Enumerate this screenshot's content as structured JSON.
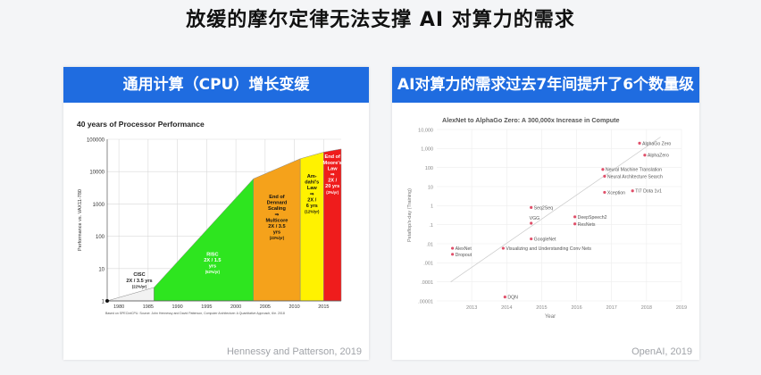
{
  "main_title": "放缓的摩尔定律无法支撑 AI 对算力的需求",
  "left_card": {
    "header": "通用计算（CPU）增长变缓",
    "caption": "Hennessy and Patterson, 2019"
  },
  "right_card": {
    "header": "AI对算力的需求过去7年间提升了6个数量级",
    "caption": "OpenAI, 2019"
  },
  "colors": {
    "header_blue": "#1f6ce0",
    "cisc": "#f2f2f2",
    "risc": "#2ee51f",
    "dennard": "#f5a21b",
    "amdahl": "#fff200",
    "moore": "#ef1c1c",
    "openai_point": "#e0506a"
  },
  "chart_data": [
    {
      "type": "area",
      "title": "40 years of Processor Performance",
      "ylabel": "Performance vs. VAX11-780",
      "xlabel": "",
      "x_ticks": [
        1980,
        1985,
        1990,
        1995,
        2000,
        2005,
        2010,
        2015
      ],
      "y_ticks": [
        1,
        10,
        100,
        1000,
        10000,
        100000
      ],
      "y_scale": "log",
      "ylim": [
        1,
        100000
      ],
      "xlim": [
        1978,
        2018
      ],
      "grid": true,
      "curve": [
        [
          1978,
          1
        ],
        [
          1986,
          2.6
        ],
        [
          2003,
          6000
        ],
        [
          2011,
          25000
        ],
        [
          2015,
          40000
        ],
        [
          2018,
          50000
        ]
      ],
      "regions": [
        {
          "name": "CISC",
          "from": 1978,
          "to": 1986,
          "label": [
            "CISC",
            "2X / 3.5 yrs",
            "(22%/yr)"
          ]
        },
        {
          "name": "RISC",
          "from": 1986,
          "to": 2003,
          "label": [
            "RISC",
            "2X / 1.5",
            "yrs",
            "(52%/yr)"
          ]
        },
        {
          "name": "Dennard",
          "from": 2003,
          "to": 2011,
          "label": [
            "End of",
            "Dennard",
            "Scaling",
            "⇒",
            "Multicore",
            "2X / 3.5",
            "yrs",
            "(23%/yr)"
          ]
        },
        {
          "name": "Amdahl",
          "from": 2011,
          "to": 2015,
          "label": [
            "Am-",
            "dahl's",
            "Law",
            "⇒",
            "2X /",
            "6 yrs",
            "(12%/yr)"
          ]
        },
        {
          "name": "Moore",
          "from": 2015,
          "to": 2018,
          "label": [
            "End of",
            "Moore's",
            "Law",
            "⇒",
            "2X /",
            "20 yrs",
            "(3%/yr)"
          ]
        }
      ],
      "footnote": "Based on SPECintCPU. Source: John Hennessy and David Patterson, Computer Architecture: A Quantitative Approach, 6/e. 2018"
    },
    {
      "type": "scatter",
      "title": "AlexNet to AlphaGo Zero: A 300,000x Increase in Compute",
      "ylabel": "Petaflop/s-day (Training)",
      "xlabel": "Year",
      "y_scale": "log",
      "ylim": [
        1e-05,
        10000
      ],
      "xlim": [
        2012,
        2019
      ],
      "x_ticks": [
        2013,
        2014,
        2015,
        2016,
        2017,
        2018,
        2019
      ],
      "y_tick_labels": [
        ".00001",
        ".0001",
        ".001",
        ".01",
        ".1",
        "1",
        "10",
        "100",
        "1,000",
        "10,000"
      ],
      "grid": true,
      "trend": [
        [
          2012.4,
          0.0001
        ],
        [
          2018.4,
          4000
        ]
      ],
      "points": [
        {
          "label": "AlexNet",
          "x": 2012.45,
          "y": 0.0058
        },
        {
          "label": "Dropout",
          "x": 2012.45,
          "y": 0.0028
        },
        {
          "label": "Visualizing and Understanding Conv Nets",
          "x": 2013.9,
          "y": 0.0058
        },
        {
          "label": "DQN",
          "x": 2013.95,
          "y": 1.6e-05
        },
        {
          "label": "GoogleNet",
          "x": 2014.7,
          "y": 0.018
        },
        {
          "label": "Seq2Seq",
          "x": 2014.7,
          "y": 0.8
        },
        {
          "label": "VGG",
          "x": 2014.7,
          "y": 0.12
        },
        {
          "label": "DeepSpeech2",
          "x": 2015.95,
          "y": 0.26
        },
        {
          "label": "ResNets",
          "x": 2015.95,
          "y": 0.11
        },
        {
          "label": "Neural Machine Translation",
          "x": 2016.75,
          "y": 80
        },
        {
          "label": "Neural Architecture Search",
          "x": 2016.8,
          "y": 35
        },
        {
          "label": "Xception",
          "x": 2016.8,
          "y": 5
        },
        {
          "label": "TI7 Dota 1v1",
          "x": 2017.6,
          "y": 6
        },
        {
          "label": "AlphaGo Zero",
          "x": 2017.8,
          "y": 1900
        },
        {
          "label": "AlphaZero",
          "x": 2017.95,
          "y": 450
        }
      ]
    }
  ]
}
